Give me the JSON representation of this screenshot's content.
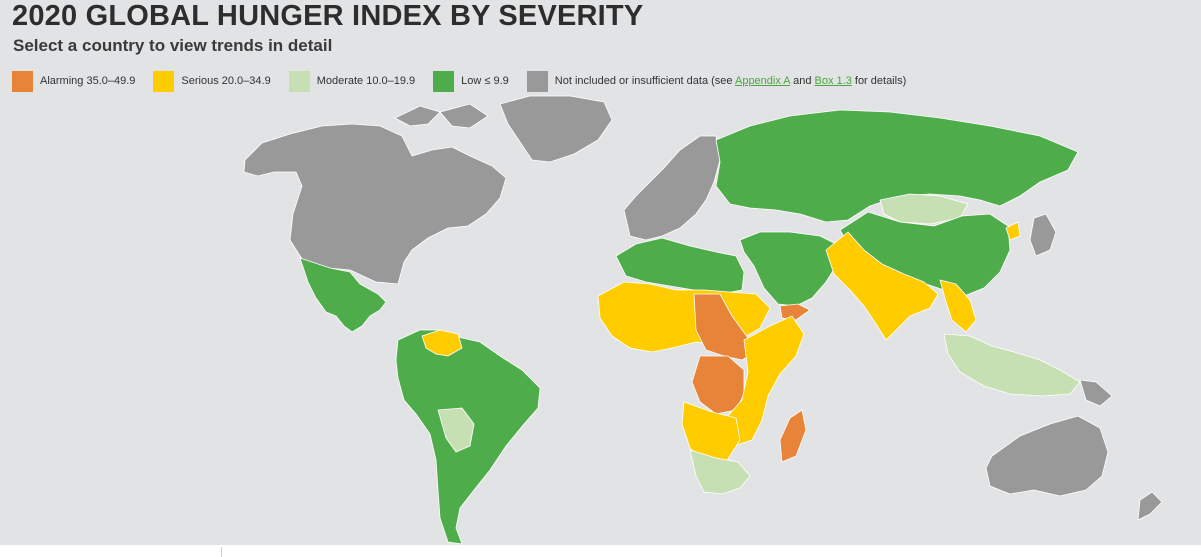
{
  "header": {
    "title": "2020 GLOBAL HUNGER INDEX BY SEVERITY",
    "subtitle": "Select a country to view trends in detail"
  },
  "legend": {
    "alarming": {
      "label": "Alarming 35.0–49.9",
      "color": "#e8833a"
    },
    "serious": {
      "label": "Serious 20.0–34.9",
      "color": "#ffcc00"
    },
    "moderate": {
      "label": "Moderate 10.0–19.9",
      "color": "#c6e0b4"
    },
    "low": {
      "label": "Low ≤ 9.9",
      "color": "#4ead4a"
    },
    "not_included": {
      "label_prefix": "Not included or insufficient data (see ",
      "link1": "Appendix A",
      "and": " and ",
      "link2": "Box 1.3",
      "label_suffix": " for details)",
      "color": "#999999"
    }
  },
  "map": {
    "background": "#e2e3e4",
    "regions": {
      "north_america": "not_included",
      "greenland": "not_included",
      "mexico_central_america": "low",
      "south_america": "low",
      "venezuela": "serious",
      "bolivia_paraguay": "moderate",
      "europe": "not_included",
      "russia_central_asia": "low",
      "mongolia": "moderate",
      "china": "low",
      "north_korea": "serious",
      "south_asia": "serious",
      "southeast_asia": "moderate",
      "middle_east": "low",
      "yemen": "alarming",
      "sahel_west_africa": "serious",
      "chad_car": "alarming",
      "dr_congo": "alarming",
      "east_africa": "serious",
      "southern_africa": "moderate",
      "madagascar": "alarming",
      "australia": "not_included"
    }
  }
}
